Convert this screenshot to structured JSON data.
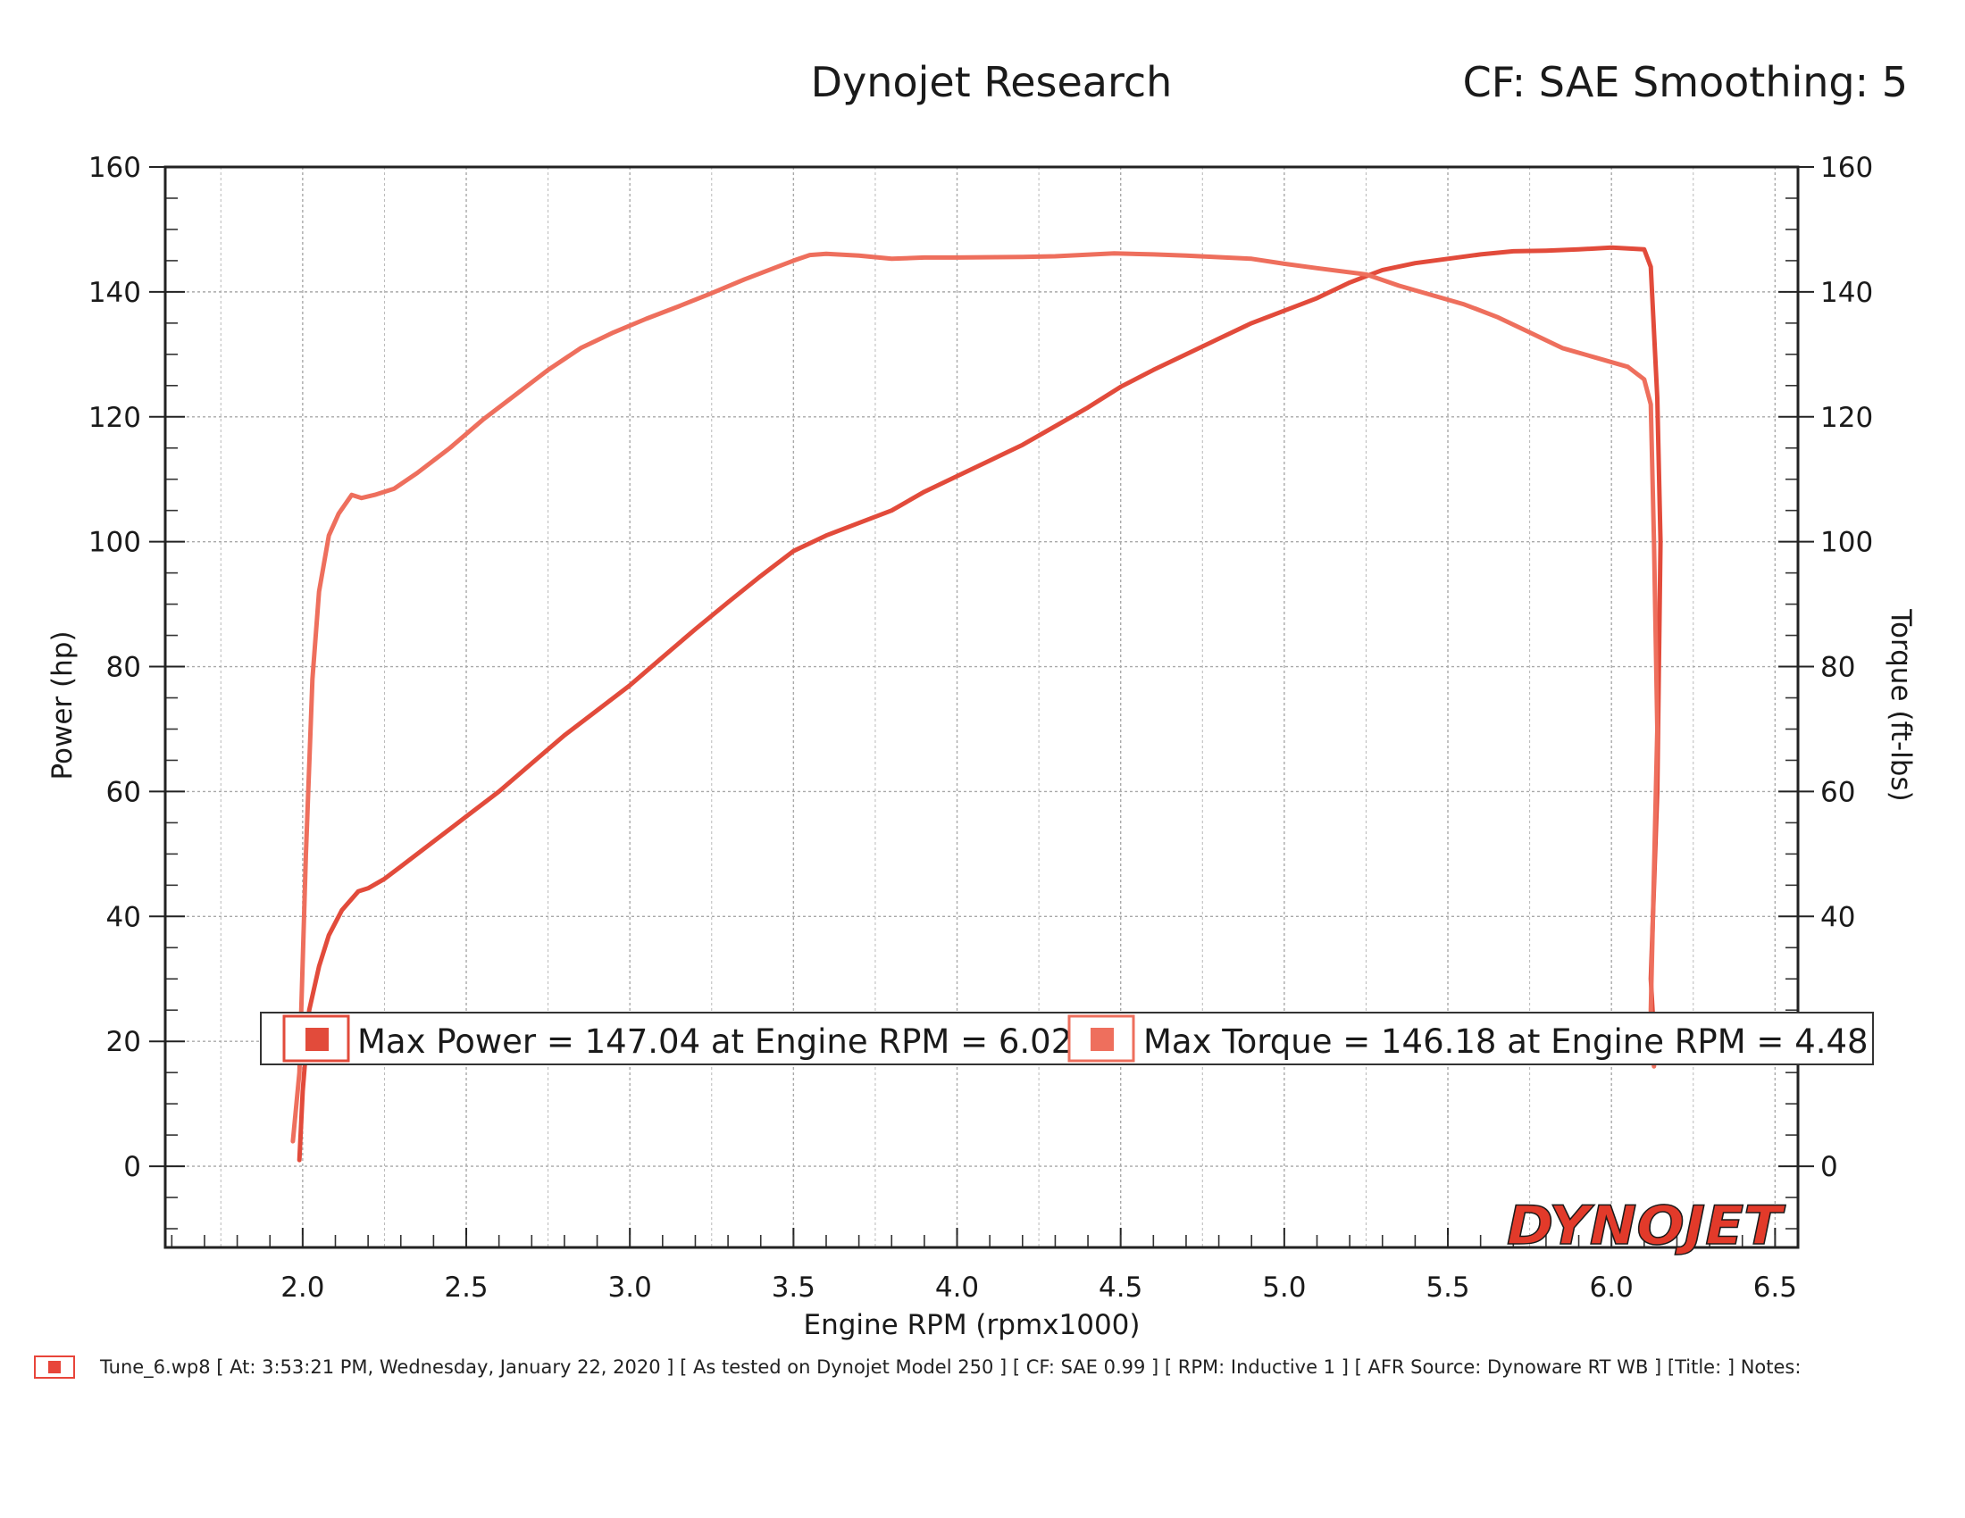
{
  "header": {
    "title": "Dynojet Research",
    "correction": "CF: SAE Smoothing: 5"
  },
  "chart_data": {
    "type": "line",
    "title": "Dynojet Research",
    "xlabel": "Engine RPM (rpmx1000)",
    "ylabel": "Power (hp)",
    "y2label": "Torque (ft-lbs)",
    "xlim": [
      1.58,
      6.57
    ],
    "ylim": [
      -13,
      160
    ],
    "y2lim": [
      -13,
      160
    ],
    "x_ticks": [
      "2.0",
      "2.5",
      "3.0",
      "3.5",
      "4.0",
      "4.5",
      "5.0",
      "5.5",
      "6.0",
      "6.5"
    ],
    "y_ticks": [
      "0",
      "20",
      "40",
      "60",
      "80",
      "100",
      "120",
      "140",
      "160"
    ],
    "y2_ticks": [
      "0",
      "40",
      "60",
      "80",
      "100",
      "120",
      "140",
      "160"
    ],
    "grid": true,
    "series": [
      {
        "name": "Power",
        "color": "#e24b3b",
        "points": [
          [
            1.99,
            1
          ],
          [
            2.0,
            12
          ],
          [
            2.02,
            25
          ],
          [
            2.05,
            32
          ],
          [
            2.08,
            37
          ],
          [
            2.12,
            41
          ],
          [
            2.17,
            44
          ],
          [
            2.2,
            44.5
          ],
          [
            2.25,
            46
          ],
          [
            2.3,
            48
          ],
          [
            2.4,
            52
          ],
          [
            2.5,
            56
          ],
          [
            2.6,
            60
          ],
          [
            2.7,
            64.5
          ],
          [
            2.8,
            69
          ],
          [
            2.9,
            73
          ],
          [
            3.0,
            77
          ],
          [
            3.1,
            81.5
          ],
          [
            3.2,
            86
          ],
          [
            3.3,
            90.3
          ],
          [
            3.4,
            94.5
          ],
          [
            3.5,
            98.5
          ],
          [
            3.6,
            101
          ],
          [
            3.7,
            103
          ],
          [
            3.8,
            105
          ],
          [
            3.9,
            108
          ],
          [
            4.0,
            110.5
          ],
          [
            4.1,
            113
          ],
          [
            4.2,
            115.5
          ],
          [
            4.3,
            118.5
          ],
          [
            4.4,
            121.5
          ],
          [
            4.5,
            124.8
          ],
          [
            4.6,
            127.5
          ],
          [
            4.7,
            130
          ],
          [
            4.8,
            132.5
          ],
          [
            4.9,
            135
          ],
          [
            5.0,
            137
          ],
          [
            5.1,
            139
          ],
          [
            5.2,
            141.5
          ],
          [
            5.3,
            143.5
          ],
          [
            5.4,
            144.6
          ],
          [
            5.5,
            145.3
          ],
          [
            5.6,
            146
          ],
          [
            5.7,
            146.5
          ],
          [
            5.8,
            146.6
          ],
          [
            5.9,
            146.8
          ],
          [
            6.0,
            147.1
          ],
          [
            6.02,
            147.04
          ],
          [
            6.1,
            146.8
          ],
          [
            6.12,
            144
          ],
          [
            6.14,
            123
          ],
          [
            6.15,
            100
          ],
          [
            6.14,
            60
          ],
          [
            6.12,
            30
          ],
          [
            6.13,
            21
          ]
        ]
      },
      {
        "name": "Torque",
        "color": "#ee6f5d",
        "points": [
          [
            1.97,
            4
          ],
          [
            1.99,
            15
          ],
          [
            2.01,
            50
          ],
          [
            2.03,
            78
          ],
          [
            2.05,
            92
          ],
          [
            2.08,
            101
          ],
          [
            2.11,
            104.5
          ],
          [
            2.15,
            107.5
          ],
          [
            2.18,
            107
          ],
          [
            2.22,
            107.5
          ],
          [
            2.28,
            108.5
          ],
          [
            2.35,
            111
          ],
          [
            2.45,
            115
          ],
          [
            2.55,
            119.5
          ],
          [
            2.65,
            123.5
          ],
          [
            2.75,
            127.5
          ],
          [
            2.85,
            131
          ],
          [
            2.95,
            133.5
          ],
          [
            3.05,
            135.7
          ],
          [
            3.15,
            137.7
          ],
          [
            3.25,
            139.8
          ],
          [
            3.35,
            142
          ],
          [
            3.45,
            144
          ],
          [
            3.5,
            145
          ],
          [
            3.55,
            145.9
          ],
          [
            3.6,
            146.1
          ],
          [
            3.7,
            145.8
          ],
          [
            3.8,
            145.3
          ],
          [
            3.9,
            145.5
          ],
          [
            4.0,
            145.5
          ],
          [
            4.2,
            145.6
          ],
          [
            4.3,
            145.7
          ],
          [
            4.48,
            146.18
          ],
          [
            4.6,
            146
          ],
          [
            4.7,
            145.8
          ],
          [
            4.9,
            145.3
          ],
          [
            5.0,
            144.5
          ],
          [
            5.1,
            143.8
          ],
          [
            5.25,
            142.8
          ],
          [
            5.35,
            141
          ],
          [
            5.45,
            139.5
          ],
          [
            5.55,
            138
          ],
          [
            5.65,
            136
          ],
          [
            5.75,
            133.5
          ],
          [
            5.85,
            131
          ],
          [
            5.95,
            129.5
          ],
          [
            6.05,
            128
          ],
          [
            6.1,
            126
          ],
          [
            6.12,
            122
          ],
          [
            6.13,
            100
          ],
          [
            6.14,
            70
          ],
          [
            6.12,
            25
          ],
          [
            6.13,
            16
          ]
        ]
      }
    ],
    "annotations": {
      "max_power": "Max Power = 147.04 at Engine RPM = 6.02",
      "max_torque": "Max Torque = 146.18 at Engine RPM = 4.48"
    },
    "logo": "DYNOJET"
  },
  "footer": {
    "text": "Tune_6.wp8 [ At: 3:53:21 PM, Wednesday, January 22, 2020 ] [ As tested on Dynojet Model 250 ] [ CF: SAE 0.99 ] [ RPM: Inductive 1 ] [ AFR Source: Dynoware RT WB ] [Title: ]  Notes:"
  }
}
